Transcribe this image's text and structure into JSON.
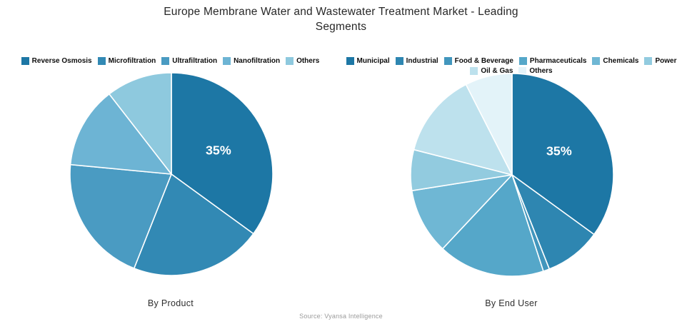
{
  "title": "Europe Membrane Water and Wastewater Treatment Market - Leading Segments",
  "source": "Source: Vyansa Intelligence",
  "chart_data": [
    {
      "type": "pie",
      "title": "By Product",
      "legend_position": "top",
      "data_labels_shown": [
        "35%"
      ],
      "slices": [
        {
          "label": "Reverse Osmosis",
          "value": 35,
          "color": "#1d77a5",
          "data_label": "35%"
        },
        {
          "label": "Microfiltration",
          "value": 21,
          "color": "#3289b4"
        },
        {
          "label": "Ultrafiltration",
          "value": 20.5,
          "color": "#4a9bc2"
        },
        {
          "label": "Nanofiltration",
          "value": 13,
          "color": "#6db4d4"
        },
        {
          "label": "Others",
          "value": 10.5,
          "color": "#8ec9de"
        }
      ]
    },
    {
      "type": "pie",
      "title": "By End User",
      "legend_position": "top",
      "data_labels_shown": [
        "35%"
      ],
      "slices": [
        {
          "label": "Municipal",
          "value": 35,
          "color": "#1d77a5",
          "data_label": "35%"
        },
        {
          "label": "Industrial",
          "value": 9,
          "color": "#2e86b1"
        },
        {
          "label": "Food & Beverage",
          "value": 1,
          "color": "#4296bd"
        },
        {
          "label": "Pharmaceuticals",
          "value": 17,
          "color": "#55a7c9"
        },
        {
          "label": "Chemicals",
          "value": 10.5,
          "color": "#6fb7d4"
        },
        {
          "label": "Power",
          "value": 6.5,
          "color": "#92cbdf"
        },
        {
          "label": "Oil & Gas",
          "value": 13.5,
          "color": "#bde1ed"
        },
        {
          "label": "Others",
          "value": 7.5,
          "color": "#e3f3f9"
        }
      ]
    }
  ]
}
